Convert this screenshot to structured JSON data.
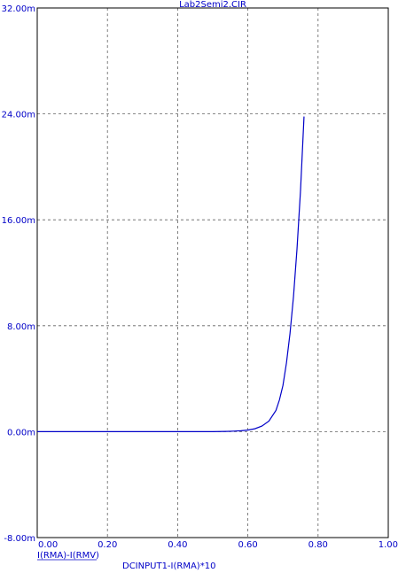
{
  "chart_data": {
    "type": "line",
    "title": "Lab2Semi2.CIR",
    "xlabel": "DCINPUT1-I(RMA)*10",
    "ylabel": "I(RMA)-I(RMV)",
    "xlim": [
      0,
      1
    ],
    "ylim": [
      -8,
      32
    ],
    "x_ticks": [
      0,
      0.2,
      0.4,
      0.6,
      0.8,
      1.0
    ],
    "x_tick_labels": [
      "0.00",
      "0.20",
      "0.40",
      "0.60",
      "0.80",
      "1.00"
    ],
    "y_ticks": [
      -8,
      0,
      8,
      16,
      24,
      32
    ],
    "y_tick_labels": [
      "-8.00m",
      "0.00m",
      "8.00m",
      "16.00m",
      "24.00m",
      "32.00m"
    ],
    "grid": true,
    "series": [
      {
        "values": [
          [
            0.0,
            0.0
          ],
          [
            0.05,
            0.0
          ],
          [
            0.1,
            0.0
          ],
          [
            0.15,
            0.0
          ],
          [
            0.2,
            0.0
          ],
          [
            0.25,
            0.0
          ],
          [
            0.3,
            0.0
          ],
          [
            0.35,
            0.0
          ],
          [
            0.4,
            0.0
          ],
          [
            0.45,
            0.0
          ],
          [
            0.5,
            0.0
          ],
          [
            0.52,
            0.01
          ],
          [
            0.54,
            0.02
          ],
          [
            0.56,
            0.04
          ],
          [
            0.58,
            0.07
          ],
          [
            0.6,
            0.12
          ],
          [
            0.62,
            0.22
          ],
          [
            0.64,
            0.42
          ],
          [
            0.66,
            0.8
          ],
          [
            0.68,
            1.6
          ],
          [
            0.69,
            2.4
          ],
          [
            0.7,
            3.5
          ],
          [
            0.71,
            5.2
          ],
          [
            0.72,
            7.4
          ],
          [
            0.73,
            10.2
          ],
          [
            0.74,
            13.8
          ],
          [
            0.75,
            18.2
          ],
          [
            0.76,
            23.8
          ]
        ]
      }
    ],
    "colors": {
      "plot_line": "#0000c8",
      "text": "#0000c8",
      "axis": "#000000",
      "grid": "#606060"
    }
  }
}
